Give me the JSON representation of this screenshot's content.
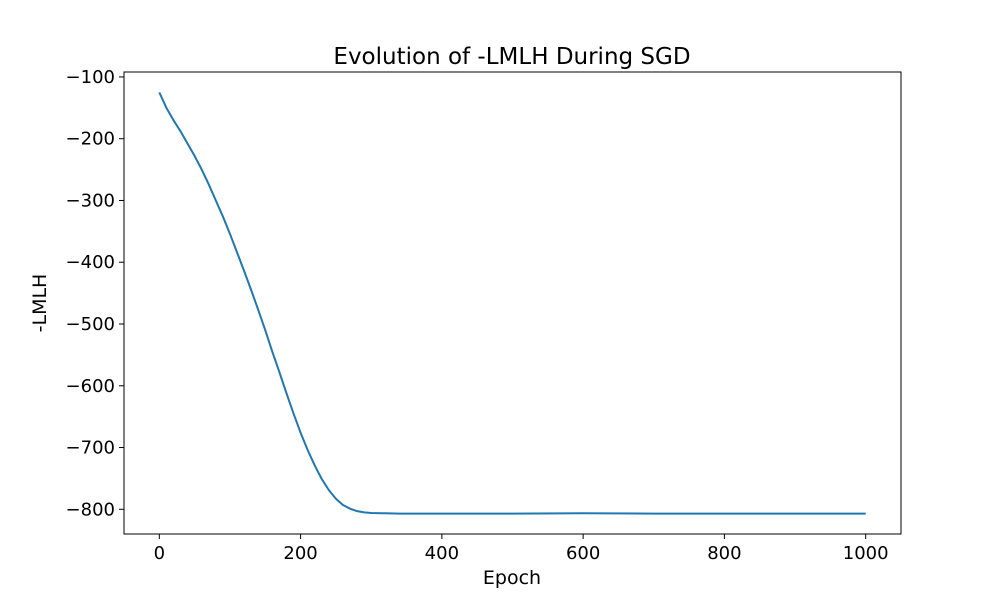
{
  "chart_data": {
    "type": "line",
    "title": "Evolution of -LMLH During SGD",
    "xlabel": "Epoch",
    "ylabel": "-LMLH",
    "xlim": [
      -50,
      1050
    ],
    "ylim": [
      -840,
      -92
    ],
    "xticks": [
      0,
      200,
      400,
      600,
      800,
      1000
    ],
    "xtick_labels": [
      "0",
      "200",
      "400",
      "600",
      "800",
      "1000"
    ],
    "yticks": [
      -100,
      -200,
      -300,
      -400,
      -500,
      -600,
      -700,
      -800
    ],
    "ytick_labels": [
      "−100",
      "−200",
      "−300",
      "−400",
      "−500",
      "−600",
      "−700",
      "−800"
    ],
    "grid": false,
    "legend": "none",
    "line_color": "#1f77b4",
    "series": [
      {
        "x": [
          0,
          10,
          20,
          30,
          40,
          50,
          60,
          70,
          80,
          90,
          100,
          110,
          120,
          130,
          140,
          150,
          160,
          170,
          180,
          190,
          200,
          210,
          220,
          230,
          240,
          250,
          260,
          270,
          280,
          290,
          300,
          320,
          340,
          360,
          400,
          500,
          600,
          700,
          800,
          900,
          1000
        ],
        "y": [
          -125,
          -150,
          -170,
          -188,
          -208,
          -228,
          -250,
          -274,
          -300,
          -326,
          -354,
          -384,
          -414,
          -445,
          -477,
          -510,
          -545,
          -578,
          -612,
          -645,
          -676,
          -704,
          -729,
          -751,
          -769,
          -783,
          -793,
          -799,
          -803,
          -805,
          -806,
          -806.5,
          -807,
          -807,
          -807,
          -807,
          -806.5,
          -807,
          -807,
          -807,
          -807
        ]
      }
    ]
  }
}
